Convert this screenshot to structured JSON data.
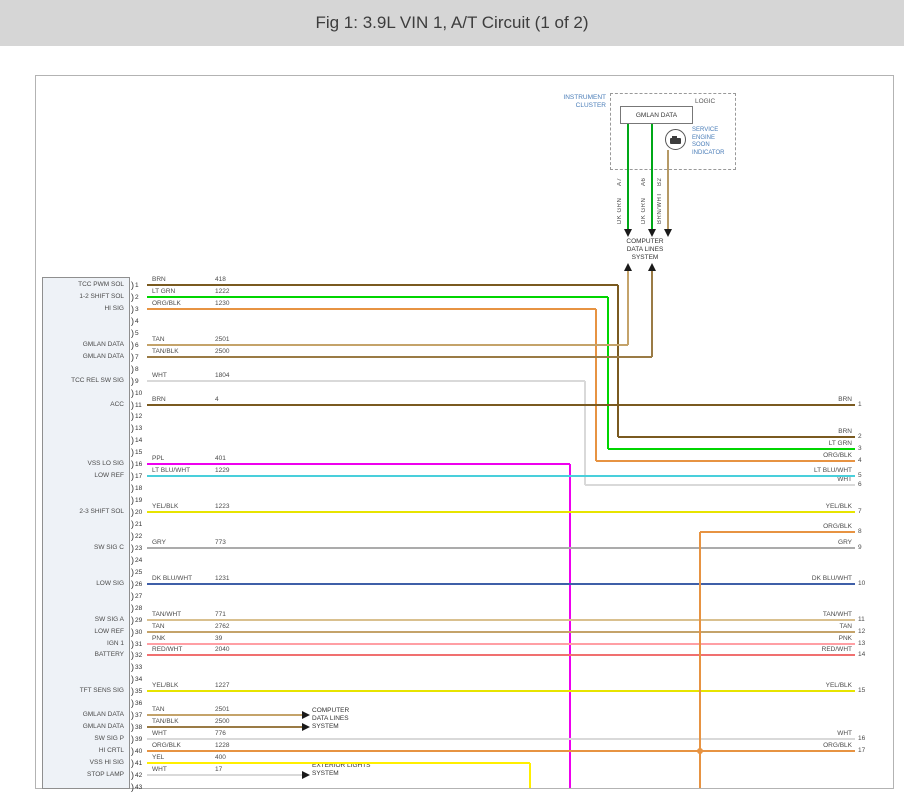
{
  "title": "Fig 1: 3.9L VIN 1, A/T Circuit (1 of 2)",
  "cluster": {
    "name": "INSTRUMENT\nCLUSTER",
    "logic": "LOGIC",
    "gmlan": "GMLAN DATA",
    "indicator": "SERVICE\nENGINE\nSOON\nINDICATOR",
    "drops": [
      {
        "terminal": "A7",
        "color_label": "DK GRN"
      },
      {
        "terminal": "A6",
        "color_label": "DK GRN"
      },
      {
        "terminal": "B2",
        "color_label": "BRN/WHT"
      }
    ]
  },
  "systems": {
    "computer_top": "COMPUTER\nDATA LINES\nSYSTEM",
    "computer_mid": "COMPUTER\nDATA LINES\nSYSTEM",
    "exterior": "EXTERIOR LIGHTS\nSYSTEM"
  },
  "connector": {
    "pin_count": 43
  },
  "wires": [
    {
      "pin": 1,
      "function": "TCC PWM SOL",
      "color": "BRN",
      "circuit": "418",
      "to": "edge",
      "edge": 2
    },
    {
      "pin": 2,
      "function": "1-2 SHIFT SOL",
      "color": "LT GRN",
      "circuit": "1222",
      "to": "edge",
      "edge": 3
    },
    {
      "pin": 3,
      "function": "HI SIG",
      "color": "ORG/BLK",
      "circuit": "1230",
      "to": "edge",
      "edge": 4
    },
    {
      "pin": 6,
      "function": "GMLAN DATA",
      "color": "TAN",
      "circuit": "2501",
      "to": "computer_top"
    },
    {
      "pin": 7,
      "function": "GMLAN DATA",
      "color": "TAN/BLK",
      "circuit": "2500",
      "to": "computer_top"
    },
    {
      "pin": 9,
      "function": "TCC REL SW SIG",
      "color": "WHT",
      "circuit": "1804",
      "to": "edge",
      "edge": 6
    },
    {
      "pin": 11,
      "function": "ACC",
      "color": "BRN",
      "circuit": "4",
      "to": "edge",
      "edge": 1
    },
    {
      "pin": 16,
      "function": "VSS LO SIG",
      "color": "PPL",
      "circuit": "401",
      "to": "bottom"
    },
    {
      "pin": 17,
      "function": "LOW REF",
      "color": "LT BLU/WHT",
      "circuit": "1229",
      "to": "edge",
      "edge": 5
    },
    {
      "pin": 20,
      "function": "2-3 SHIFT SOL",
      "color": "YEL/BLK",
      "circuit": "1223",
      "to": "edge",
      "edge": 7
    },
    {
      "pin": 23,
      "function": "SW SIG C",
      "color": "GRY",
      "circuit": "773",
      "to": "edge",
      "edge": 9
    },
    {
      "pin": 26,
      "function": "LOW SIG",
      "color": "DK BLU/WHT",
      "circuit": "1231",
      "to": "edge",
      "edge": 10
    },
    {
      "pin": 29,
      "function": "SW SIG A",
      "color": "TAN/WHT",
      "circuit": "771",
      "to": "edge",
      "edge": 11
    },
    {
      "pin": 30,
      "function": "LOW REF",
      "color": "TAN",
      "circuit": "2762",
      "to": "edge",
      "edge": 12
    },
    {
      "pin": 31,
      "function": "IGN 1",
      "color": "PNK",
      "circuit": "39",
      "to": "edge",
      "edge": 13
    },
    {
      "pin": 32,
      "function": "BATTERY",
      "color": "RED/WHT",
      "circuit": "2040",
      "to": "edge",
      "edge": 14
    },
    {
      "pin": 35,
      "function": "TFT SENS SIG",
      "color": "YEL/BLK",
      "circuit": "1227",
      "to": "edge",
      "edge": 15
    },
    {
      "pin": 37,
      "function": "GMLAN DATA",
      "color": "TAN",
      "circuit": "2501",
      "to": "computer_mid"
    },
    {
      "pin": 38,
      "function": "GMLAN DATA",
      "color": "TAN/BLK",
      "circuit": "2500",
      "to": "computer_mid"
    },
    {
      "pin": 39,
      "function": "SW SIG P",
      "color": "WHT",
      "circuit": "776",
      "to": "edge",
      "edge": 16
    },
    {
      "pin": 40,
      "function": "HI CRTL",
      "color": "ORG/BLK",
      "circuit": "1228",
      "to": "edge",
      "edge": 17,
      "branch_edge": 8
    },
    {
      "pin": 41,
      "function": "VSS HI SIG",
      "color": "YEL",
      "circuit": "400",
      "to": "bottom"
    },
    {
      "pin": 42,
      "function": "STOP LAMP",
      "color": "WHT",
      "circuit": "17",
      "to": "exterior"
    }
  ],
  "wire_colors": {
    "BRN": "#7a5a20",
    "LT GRN": "#00d500",
    "ORG/BLK": "#e79342",
    "TAN": "#c4a36a",
    "TAN/BLK": "#9a7b45",
    "WHT": "#d9d9d9",
    "PPL": "#ee00ee",
    "LT BLU/WHT": "#49cfdb",
    "YEL/BLK": "#e7e400",
    "GRY": "#ababab",
    "DK BLU/WHT": "#3f5fa8",
    "TAN/WHT": "#d9c08f",
    "PNK": "#ff9fa4",
    "RED/WHT": "#f07070",
    "YEL": "#ffef00",
    "DK GRN": "#00a818",
    "BRN/WHT": "#b69a66"
  },
  "ui_colors": {
    "titlebar_bg": "#d6d6d6",
    "label_blue": "#4a7db8"
  }
}
